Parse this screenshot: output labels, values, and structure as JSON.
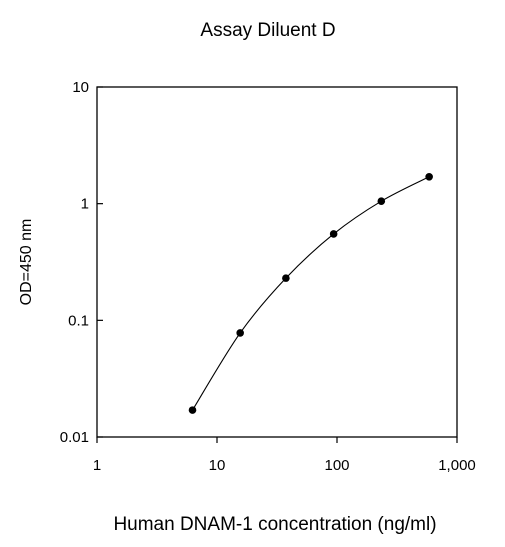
{
  "chart_data": {
    "type": "line",
    "title": "Assay Diluent D",
    "xlabel": "Human DNAM-1 concentration (ng/ml)",
    "ylabel": "OD=450 nm",
    "x_scale": "log",
    "y_scale": "log",
    "xlim": [
      1,
      1000
    ],
    "ylim": [
      0.01,
      10
    ],
    "x_ticks": [
      1,
      10,
      100,
      1000
    ],
    "x_tick_labels": [
      "1",
      "10",
      "100",
      "1,000"
    ],
    "y_ticks": [
      0.01,
      0.1,
      1,
      10
    ],
    "y_tick_labels": [
      "0.01",
      "0.1",
      "1",
      "10"
    ],
    "grid": false,
    "legend": "none",
    "series": [
      {
        "x": [
          6.25,
          15.6,
          37.5,
          93.75,
          234,
          586
        ],
        "y": [
          0.017,
          0.078,
          0.23,
          0.55,
          1.05,
          1.7
        ]
      }
    ],
    "colors": {
      "line": "#000000",
      "marker": "#000000",
      "axis": "#000000"
    }
  }
}
